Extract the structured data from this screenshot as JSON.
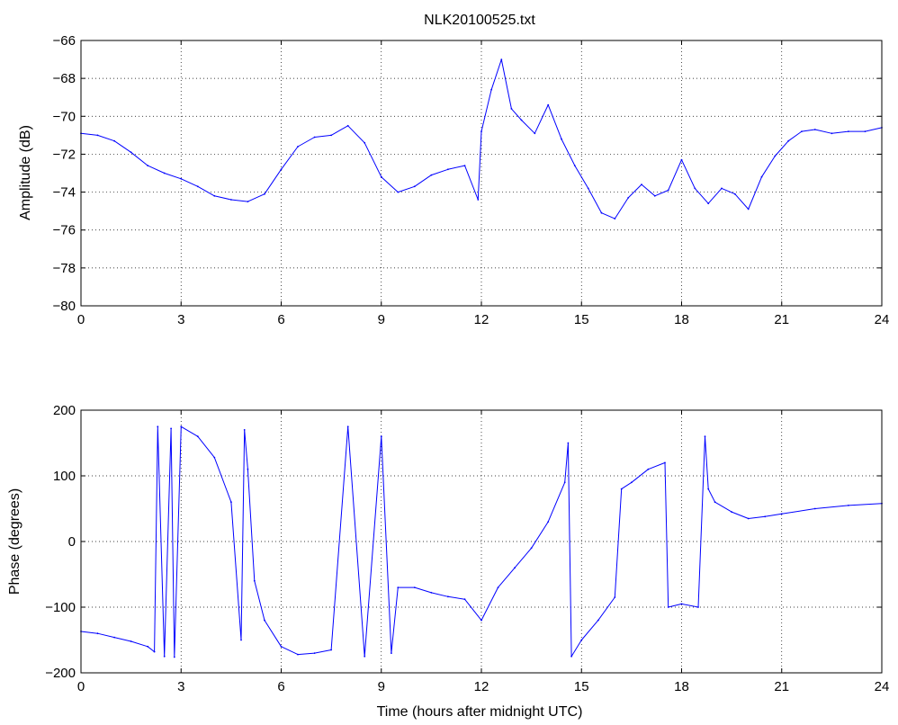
{
  "figure": {
    "title": "NLK20100525.txt",
    "line_color": "#0000ff"
  },
  "chart_data": [
    {
      "type": "line",
      "title": "NLK20100525.txt",
      "xlabel": "",
      "ylabel": "Amplitude (dB)",
      "xlim": [
        0,
        24
      ],
      "ylim": [
        -80,
        -66
      ],
      "xticks": [
        0,
        3,
        6,
        9,
        12,
        15,
        18,
        21,
        24
      ],
      "yticks": [
        -80,
        -78,
        -76,
        -74,
        -72,
        -70,
        -68,
        -66
      ],
      "grid": true,
      "series": [
        {
          "color": "#0000ff",
          "x": [
            0,
            0.5,
            1.0,
            1.5,
            2.0,
            2.5,
            3.0,
            3.5,
            4.0,
            4.5,
            5.0,
            5.5,
            6.0,
            6.5,
            7.0,
            7.5,
            8.0,
            8.5,
            9.0,
            9.5,
            10.0,
            10.5,
            11.0,
            11.5,
            11.9,
            12.0,
            12.3,
            12.6,
            12.9,
            13.2,
            13.6,
            14.0,
            14.4,
            14.8,
            15.2,
            15.6,
            16.0,
            16.4,
            16.8,
            17.2,
            17.6,
            18.0,
            18.4,
            18.8,
            19.2,
            19.6,
            20.0,
            20.4,
            20.8,
            21.2,
            21.6,
            22.0,
            22.5,
            23.0,
            23.5,
            24.0
          ],
          "y": [
            -70.9,
            -71.0,
            -71.3,
            -71.9,
            -72.6,
            -73.0,
            -73.3,
            -73.7,
            -74.2,
            -74.4,
            -74.5,
            -74.1,
            -72.8,
            -71.6,
            -71.1,
            -71.0,
            -70.5,
            -71.4,
            -73.2,
            -74.0,
            -73.7,
            -73.1,
            -72.8,
            -72.6,
            -74.4,
            -70.8,
            -68.6,
            -67.0,
            -69.6,
            -70.2,
            -70.9,
            -69.4,
            -71.2,
            -72.6,
            -73.8,
            -75.1,
            -75.4,
            -74.3,
            -73.6,
            -74.2,
            -73.9,
            -72.3,
            -73.8,
            -74.6,
            -73.8,
            -74.1,
            -74.9,
            -73.2,
            -72.1,
            -71.3,
            -70.8,
            -70.7,
            -70.9,
            -70.8,
            -70.8,
            -70.6
          ]
        }
      ]
    },
    {
      "type": "line",
      "title": "",
      "xlabel": "Time (hours after midnight UTC)",
      "ylabel": "Phase (degrees)",
      "xlim": [
        0,
        24
      ],
      "ylim": [
        -200,
        200
      ],
      "xticks": [
        0,
        3,
        6,
        9,
        12,
        15,
        18,
        21,
        24
      ],
      "yticks": [
        -200,
        -100,
        0,
        100,
        200
      ],
      "grid": true,
      "series": [
        {
          "color": "#0000ff",
          "x": [
            0,
            0.5,
            1.0,
            1.5,
            2.0,
            2.2,
            2.3,
            2.5,
            2.7,
            2.8,
            3.0,
            3.5,
            4.0,
            4.5,
            4.8,
            4.9,
            5.0,
            5.2,
            5.5,
            6.0,
            6.5,
            7.0,
            7.5,
            8.0,
            8.5,
            9.0,
            9.3,
            9.5,
            10.0,
            10.5,
            11.0,
            11.5,
            12.0,
            12.5,
            13.0,
            13.5,
            14.0,
            14.5,
            14.6,
            14.7,
            15.0,
            15.5,
            16.0,
            16.2,
            16.5,
            17.0,
            17.5,
            17.6,
            18.0,
            18.5,
            18.7,
            18.8,
            19.0,
            19.5,
            20.0,
            20.5,
            21.0,
            22.0,
            23.0,
            24.0
          ],
          "y": [
            -137,
            -140,
            -146,
            -152,
            -160,
            -168,
            175,
            -175,
            172,
            -176,
            175,
            160,
            128,
            60,
            -150,
            170,
            110,
            -60,
            -120,
            -160,
            -172,
            -170,
            -165,
            175,
            -175,
            160,
            -170,
            -70,
            -70,
            -78,
            -84,
            -88,
            -120,
            -70,
            -40,
            -10,
            30,
            90,
            150,
            -175,
            -150,
            -120,
            -85,
            80,
            90,
            110,
            120,
            -100,
            -95,
            -100,
            160,
            80,
            60,
            45,
            35,
            38,
            42,
            50,
            55,
            58
          ]
        }
      ]
    }
  ]
}
